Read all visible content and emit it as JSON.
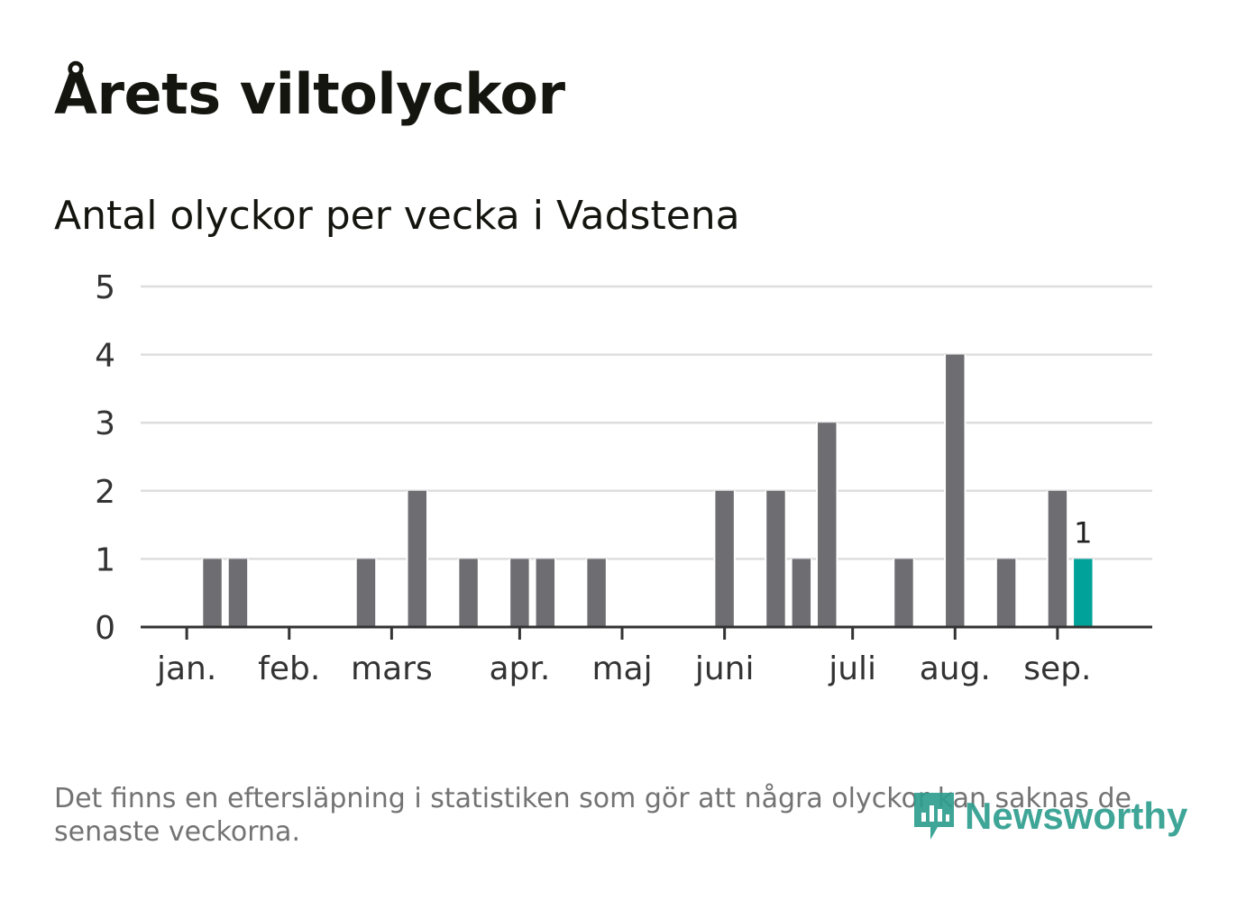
{
  "title": "Årets viltolyckor",
  "subtitle": "Antal olyckor per vecka i Vadstena",
  "footnote": "Det finns en eftersläpning i statistiken som gör att några olyckor kan saknas de senaste veckorna.",
  "brand": {
    "name": "Newsworthy",
    "color": "#2e9e8f",
    "icon": "chart-speech-bubble-icon"
  },
  "colors": {
    "bar": "#6e6d72",
    "highlight": "#00a29a",
    "grid": "#dedede",
    "axis": "#333333",
    "text": "#333333"
  },
  "chart_data": {
    "type": "bar",
    "x": [
      1,
      2,
      3,
      4,
      5,
      6,
      7,
      8,
      9,
      10,
      11,
      12,
      13,
      14,
      15,
      16,
      17,
      18,
      19,
      20,
      21,
      22,
      23,
      24,
      25,
      26,
      27,
      28,
      29,
      30,
      31,
      32,
      33,
      34,
      35,
      36,
      37,
      38
    ],
    "values": [
      0,
      0,
      1,
      1,
      0,
      0,
      0,
      0,
      1,
      0,
      2,
      0,
      1,
      0,
      1,
      1,
      0,
      1,
      0,
      0,
      0,
      0,
      2,
      0,
      2,
      1,
      3,
      0,
      0,
      1,
      0,
      4,
      0,
      1,
      0,
      2,
      1,
      0
    ],
    "highlight_index": 36,
    "highlight_label": "1",
    "month_ticks": [
      {
        "label": "jan.",
        "week": 2
      },
      {
        "label": "feb.",
        "week": 6
      },
      {
        "label": "mars",
        "week": 10
      },
      {
        "label": "apr.",
        "week": 15
      },
      {
        "label": "maj",
        "week": 19
      },
      {
        "label": "juni",
        "week": 23
      },
      {
        "label": "juli",
        "week": 28
      },
      {
        "label": "aug.",
        "week": 32
      },
      {
        "label": "sep.",
        "week": 36
      }
    ],
    "yticks": [
      0,
      1,
      2,
      3,
      4,
      5
    ],
    "ylim": [
      0,
      5
    ],
    "xlim": [
      0.2,
      39.7
    ],
    "grid": true,
    "legend": "none"
  }
}
